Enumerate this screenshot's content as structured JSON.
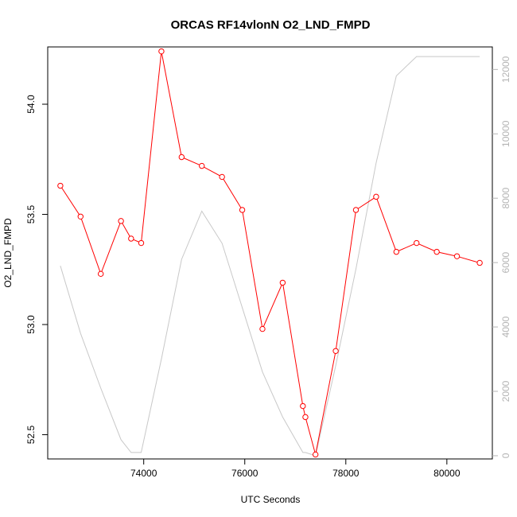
{
  "chart_data": {
    "type": "line",
    "title": "ORCAS RF14vlonN O2_LND_FMPD",
    "xlabel": "UTC Seconds",
    "ylabel": "O2_LND_FMPD",
    "xlim": [
      72100,
      80900
    ],
    "ylim": [
      52.39,
      54.26
    ],
    "y2lim": [
      -100,
      12700
    ],
    "x_ticks": [
      74000,
      76000,
      78000,
      80000
    ],
    "x_tick_labels": [
      "74000",
      "76000",
      "78000",
      "80000"
    ],
    "y_ticks": [
      52.5,
      53.0,
      53.5,
      54.0
    ],
    "y_tick_labels": [
      "52.5",
      "53.0",
      "53.5",
      "54.0"
    ],
    "y2_ticks": [
      0,
      2000,
      4000,
      6000,
      8000,
      10000,
      12000
    ],
    "y2_tick_labels": [
      "0",
      "2000",
      "4000",
      "6000",
      "8000",
      "10000",
      "12000"
    ],
    "grid": false,
    "series": [
      {
        "axis": "left",
        "color": "#ff0000",
        "style": "line+circles",
        "x": [
          72350,
          72750,
          73150,
          73550,
          73750,
          73950,
          74350,
          74750,
          75150,
          75550,
          75950,
          76350,
          76750,
          77150,
          77200,
          77400,
          77800,
          78200,
          78600,
          79000,
          79400,
          79800,
          80200,
          80650
        ],
        "values": [
          53.63,
          53.49,
          53.23,
          53.47,
          53.39,
          53.37,
          54.24,
          53.76,
          53.72,
          53.67,
          53.52,
          52.98,
          53.19,
          52.63,
          52.58,
          52.41,
          52.88,
          53.52,
          53.58,
          53.33,
          53.37,
          53.33,
          53.31,
          53.28
        ]
      },
      {
        "axis": "right",
        "color": "#c8c8c8",
        "style": "line",
        "x": [
          72350,
          72750,
          73150,
          73550,
          73750,
          73950,
          74350,
          74750,
          75150,
          75550,
          75950,
          76350,
          76750,
          77150,
          77200,
          77400,
          77800,
          78200,
          78600,
          79000,
          79400,
          79800,
          80200,
          80650
        ],
        "values": [
          5900,
          3800,
          2100,
          500,
          100,
          100,
          3000,
          6100,
          7600,
          6600,
          4600,
          2600,
          1200,
          100,
          100,
          0,
          2800,
          5800,
          9100,
          11800,
          12400,
          12400,
          12400,
          12400
        ]
      }
    ]
  }
}
